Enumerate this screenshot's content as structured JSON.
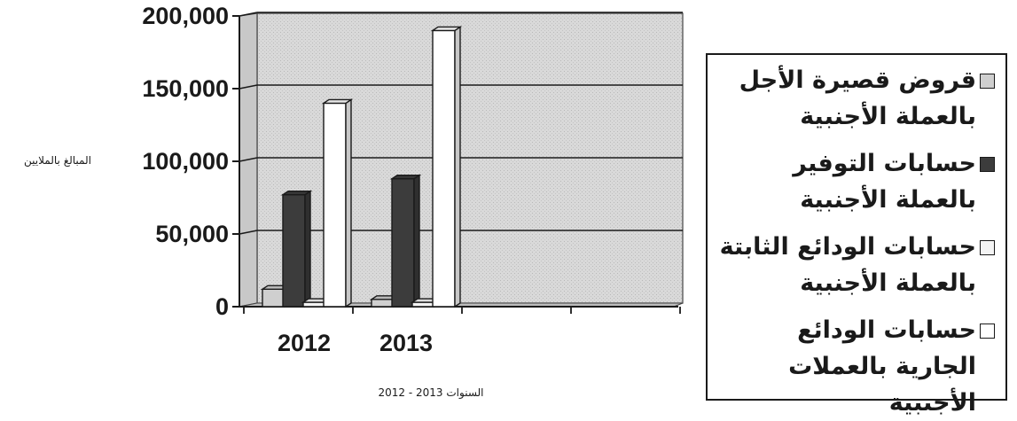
{
  "chart_data": {
    "type": "bar",
    "ylabel": "المبالغ بالملايين",
    "xlabel": "السنوات 2013 - 2012",
    "categories": [
      "2012",
      "2013"
    ],
    "y_ticks": [
      "0",
      "50,000",
      "100,000",
      "150,000",
      "200,000"
    ],
    "ylim": [
      0,
      200000
    ],
    "grid": true,
    "legend_position": "right",
    "series": [
      {
        "name": "قروض قصيرة الأجل بالعملة الأجنبية",
        "color": "#cfcfcf",
        "values": [
          12000,
          5000
        ]
      },
      {
        "name": "حسابات التوفير بالعملة الأجنبية",
        "color": "#3c3c3c",
        "values": [
          77000,
          88000
        ]
      },
      {
        "name": "حسابات الودائع الثابتة بالعملة الأجنبية",
        "color": "#f4f4f4",
        "values": [
          3000,
          3000
        ]
      },
      {
        "name": "حسابات الودائع الجارية بالعملات الأجنبية",
        "color": "#ffffff",
        "values": [
          140000,
          190000
        ]
      }
    ]
  }
}
